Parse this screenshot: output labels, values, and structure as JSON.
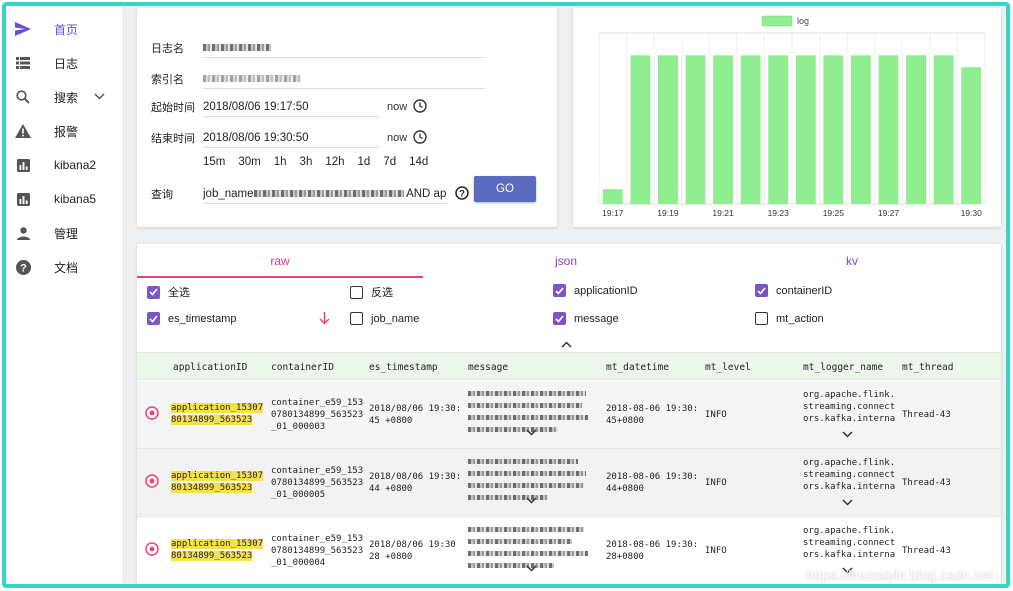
{
  "sidebar": {
    "items": [
      {
        "label": "首页",
        "icon": "send-icon"
      },
      {
        "label": "日志",
        "icon": "list-icon"
      },
      {
        "label": "搜索",
        "icon": "search-icon"
      },
      {
        "label": "报警",
        "icon": "warning-icon"
      },
      {
        "label": "kibana2",
        "icon": "bar-chart-icon"
      },
      {
        "label": "kibana5",
        "icon": "bar-chart-icon"
      },
      {
        "label": "管理",
        "icon": "person-icon"
      },
      {
        "label": "文档",
        "icon": "help-icon"
      }
    ]
  },
  "form": {
    "log_name_label": "日志名",
    "index_label": "索引名",
    "start_label": "起始时间",
    "start_value": "2018/08/06 19:17:50",
    "end_label": "结束时间",
    "end_value": "2018/08/06 19:30:50",
    "now_label": "now",
    "quick_ranges": [
      "15m",
      "30m",
      "1h",
      "3h",
      "12h",
      "1d",
      "7d",
      "14d"
    ],
    "query_label": "查询",
    "query_prefix": "job_name",
    "query_suffix": "AND ap",
    "go_label": "GO"
  },
  "chart_data": {
    "type": "bar",
    "legend": "log",
    "legend_position": "top",
    "color": "#90ee90",
    "categories": [
      "19:17",
      "19:18",
      "19:19",
      "19:20",
      "19:21",
      "19:22",
      "19:23",
      "19:24",
      "19:25",
      "19:26",
      "19:27",
      "19:28",
      "19:29",
      "19:30"
    ],
    "x_tick_labels": [
      "19:17",
      "19:19",
      "19:21",
      "19:23",
      "19:25",
      "19:27",
      "19:30"
    ],
    "values": [
      10,
      100,
      100,
      100,
      100,
      100,
      100,
      100,
      100,
      100,
      100,
      100,
      100,
      92
    ],
    "ylim": [
      0,
      115
    ]
  },
  "tabs": [
    "raw",
    "json",
    "kv"
  ],
  "fields": [
    {
      "label": "全选",
      "checked": true
    },
    {
      "label": "反选",
      "checked": false
    },
    {
      "label": "applicationID",
      "checked": true
    },
    {
      "label": "containerID",
      "checked": true
    },
    {
      "label": "es_timestamp",
      "checked": true
    },
    {
      "label": "job_name",
      "checked": false
    },
    {
      "label": "message",
      "checked": true
    },
    {
      "label": "mt_action",
      "checked": false
    }
  ],
  "table": {
    "columns": [
      "applicationID",
      "containerID",
      "es_timestamp",
      "message",
      "mt_datetime",
      "mt_level",
      "mt_logger_name",
      "mt_thread"
    ],
    "rows": [
      {
        "app_1": "application_15307",
        "app_2": "80134899_563523",
        "cont_1": "container_e59_153",
        "cont_2": "0780134899_563523",
        "cont_3": "_01_000003",
        "ts_1": "2018/08/06 19:30:",
        "ts_2": "45 +0800",
        "dt_1": "2018-08-06 19:30:",
        "dt_2": "45+0800",
        "level": "INFO",
        "logger_1": "org.apache.flink.",
        "logger_2": "streaming.connect",
        "logger_3": "ors.kafka.interna",
        "thread": "Thread-43"
      },
      {
        "app_1": "application_15307",
        "app_2": "80134899_563523",
        "cont_1": "container_e59_153",
        "cont_2": "0780134899_563523",
        "cont_3": "_01_000005",
        "ts_1": "2018/08/06 19:30:",
        "ts_2": "44 +0800",
        "dt_1": "2018-08-06 19:30:",
        "dt_2": "44+0800",
        "level": "INFO",
        "logger_1": "org.apache.flink.",
        "logger_2": "streaming.connect",
        "logger_3": "ors.kafka.interna",
        "thread": "Thread-43"
      },
      {
        "app_1": "application_15307",
        "app_2": "80134899_563523",
        "cont_1": "container_e59_153",
        "cont_2": "0780134899_563523",
        "cont_3": "_01_000004",
        "ts_1": "2018/08/06 19:30",
        "ts_2": "28 +0800",
        "dt_1": "2018-08-06 19:30:",
        "dt_2": "28+0800",
        "level": "INFO",
        "logger_1": "org.apache.flink.",
        "logger_2": "streaming.connect",
        "logger_3": "ors.kafka.interna",
        "thread": "Thread-43"
      }
    ]
  },
  "watermark": "https://linuxstyle.blog.csdn.net",
  "colors": {
    "accent": "#6a4cd6",
    "frame": "#33d6c8",
    "go": "#5c6bc0",
    "bar": "#90ee90",
    "highlight": "#f7e14a",
    "tab_raw": "#d63a8a"
  }
}
